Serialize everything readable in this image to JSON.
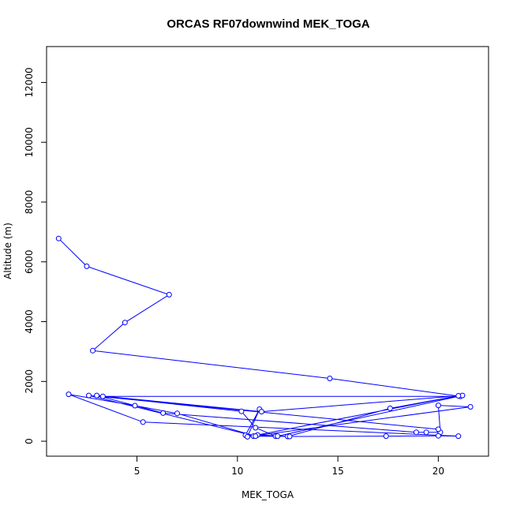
{
  "chart_data": {
    "type": "line",
    "title": "ORCAS RF07downwind MEK_TOGA",
    "xlabel": "MEK_TOGA",
    "ylabel": "Altitude (m)",
    "xlim": [
      0.5,
      22.5
    ],
    "ylim": [
      -500,
      13200
    ],
    "xticks": [
      "5",
      "10",
      "15",
      "20"
    ],
    "yticks": [
      "0",
      "2000",
      "4000",
      "6000",
      "8000",
      "10000",
      "12000"
    ],
    "markers": "open-circle",
    "line_color": "#0000ff",
    "grid": false,
    "series": [
      {
        "x": [
          1.1,
          2.5,
          6.6,
          4.4,
          2.8,
          14.6,
          21.1,
          3.3,
          10.2,
          10.9,
          11.9,
          10.4,
          11.1,
          10.5,
          21.6,
          20.0,
          20.1,
          19.4,
          18.9,
          6.3,
          3.0,
          11.2,
          21.2,
          12.0,
          10.8,
          12.5,
          17.6,
          21.0,
          11.0,
          12.6,
          17.4,
          20.0,
          21.0,
          5.3,
          1.6,
          4.9,
          7.0,
          10.9,
          2.6,
          20.0
        ],
        "y": [
          6780,
          5850,
          4900,
          3970,
          3030,
          2100,
          1500,
          1500,
          1000,
          450,
          170,
          200,
          1070,
          150,
          1150,
          1200,
          300,
          300,
          300,
          940,
          1530,
          990,
          1530,
          170,
          170,
          160,
          1100,
          1520,
          210,
          160,
          170,
          180,
          170,
          640,
          1570,
          1190,
          930,
          170,
          1530,
          400
        ]
      }
    ]
  }
}
